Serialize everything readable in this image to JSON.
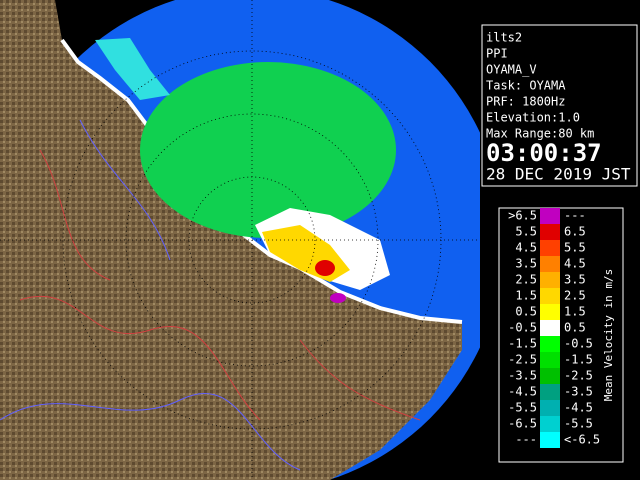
{
  "info": {
    "lines": [
      "ilts2",
      "PPI",
      "OYAMA_V",
      "Task: OYAMA",
      "PRF: 1800Hz",
      "Elevation:1.0",
      "Max Range:80 km"
    ],
    "time": "03:00:37",
    "date": "28 DEC 2019 JST"
  },
  "legend": {
    "title": "Mean Velocity in m/s",
    "rows": [
      {
        "left": ">6.5",
        "right": "---",
        "color": "#c000c0"
      },
      {
        "left": "5.5",
        "right": "6.5",
        "color": "#e00000"
      },
      {
        "left": "4.5",
        "right": "5.5",
        "color": "#ff4000"
      },
      {
        "left": "3.5",
        "right": "4.5",
        "color": "#ff8000"
      },
      {
        "left": "2.5",
        "right": "3.5",
        "color": "#ffb000"
      },
      {
        "left": "1.5",
        "right": "2.5",
        "color": "#ffd800"
      },
      {
        "left": "0.5",
        "right": "1.5",
        "color": "#ffff00"
      },
      {
        "left": "-0.5",
        "right": "0.5",
        "color": "#ffffff"
      },
      {
        "left": "-1.5",
        "right": "-0.5",
        "color": "#00ff00"
      },
      {
        "left": "-2.5",
        "right": "-1.5",
        "color": "#00e000"
      },
      {
        "left": "-3.5",
        "right": "-2.5",
        "color": "#00c000"
      },
      {
        "left": "-4.5",
        "right": "-3.5",
        "color": "#00a080"
      },
      {
        "left": "-5.5",
        "right": "-4.5",
        "color": "#00b0b0"
      },
      {
        "left": "-6.5",
        "right": "-5.5",
        "color": "#00d0d0"
      },
      {
        "left": "---",
        "right": "<-6.5",
        "color": "#00ffff"
      }
    ]
  }
}
